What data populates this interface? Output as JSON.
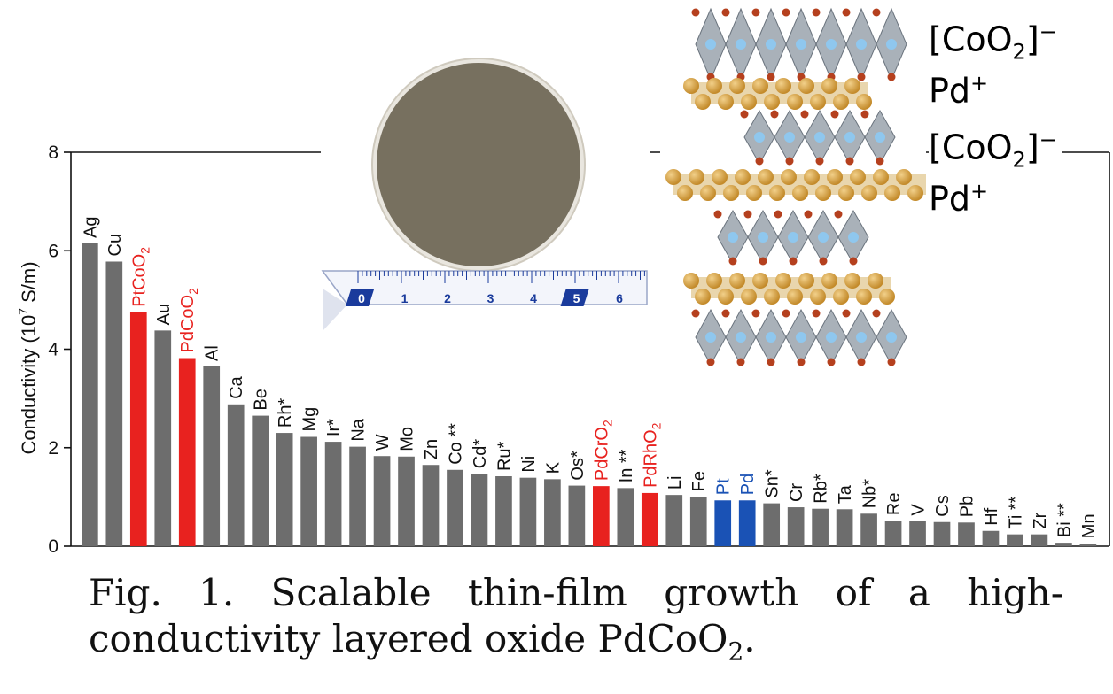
{
  "chart_data": {
    "type": "bar",
    "ylabel": "Conductivity (10",
    "ylabel_sup": "7",
    "ylabel_end": " S/m)",
    "ylim": [
      0,
      8
    ],
    "yticks": [
      "0",
      "2",
      "4",
      "6",
      "8"
    ],
    "grid": false,
    "categories": [
      "Ag",
      "Cu",
      "PtCoO2",
      "Au",
      "PdCoO2",
      "Al",
      "Ca",
      "Be",
      "Rh*",
      "Mg",
      "Ir*",
      "Na",
      "W",
      "Mo",
      "Zn",
      "Co **",
      "Cd*",
      "Ru*",
      "Ni",
      "K",
      "Os*",
      "PdCrO2",
      "In **",
      "PdRhO2",
      "Li",
      "Fe",
      "Pt",
      "Pd",
      "Sn*",
      "Cr",
      "Rb*",
      "Ta",
      "Nb*",
      "Re",
      "V",
      "Cs",
      "Pb",
      "Hf",
      "Ti **",
      "Zr",
      "Bi **",
      "Mn"
    ],
    "values": [
      6.15,
      5.78,
      4.75,
      4.38,
      3.82,
      3.65,
      2.88,
      2.65,
      2.3,
      2.22,
      2.12,
      2.02,
      1.83,
      1.82,
      1.65,
      1.55,
      1.47,
      1.42,
      1.39,
      1.36,
      1.23,
      1.22,
      1.18,
      1.08,
      1.04,
      1.0,
      0.93,
      0.93,
      0.87,
      0.79,
      0.76,
      0.75,
      0.66,
      0.52,
      0.51,
      0.49,
      0.48,
      0.31,
      0.24,
      0.24,
      0.07,
      0.05
    ],
    "colors": {
      "metal": "#6d6d6d",
      "oxide": "#e8221f",
      "highlight": "#1a52b5",
      "text": "#111111"
    },
    "groups": [
      "metal",
      "metal",
      "oxide",
      "metal",
      "oxide",
      "metal",
      "metal",
      "metal",
      "metal",
      "metal",
      "metal",
      "metal",
      "metal",
      "metal",
      "metal",
      "metal",
      "metal",
      "metal",
      "metal",
      "metal",
      "metal",
      "oxide",
      "metal",
      "oxide",
      "metal",
      "metal",
      "highlight",
      "highlight",
      "metal",
      "metal",
      "metal",
      "metal",
      "metal",
      "metal",
      "metal",
      "metal",
      "metal",
      "metal",
      "metal",
      "metal",
      "metal",
      "metal"
    ]
  },
  "inset_sample": {
    "ruler_numbers": [
      "0",
      "1",
      "2",
      "3",
      "4",
      "5",
      "6"
    ],
    "colors": {
      "wafer": "#77705f",
      "ruler": "#1a3b9c"
    }
  },
  "inset_crystal": {
    "layers": [
      {
        "label": "[CoO",
        "sub": "2",
        "end": "]",
        "sup": "−",
        "color": "#1a78c2"
      },
      {
        "label": "Pd",
        "sub": "",
        "end": "",
        "sup": "+",
        "color": "#a8883a"
      },
      {
        "label": "[CoO",
        "sub": "2",
        "end": "]",
        "sup": "−",
        "color": "#1a78c2"
      },
      {
        "label": "Pd",
        "sub": "",
        "end": "",
        "sup": "+",
        "color": "#a8883a"
      }
    ],
    "colors": {
      "pd_atom": "#c38a2a",
      "o_atom": "#b5401e",
      "octahedron": "#9aa3ad"
    }
  },
  "caption": {
    "line1_words": [
      "Fig.",
      "1.",
      "Scalable",
      "thin-film",
      "growth",
      "of",
      "a",
      "high-"
    ],
    "line2": "conductivity layered oxide PdCoO",
    "line2_sub": "2",
    "line2_end": "."
  }
}
